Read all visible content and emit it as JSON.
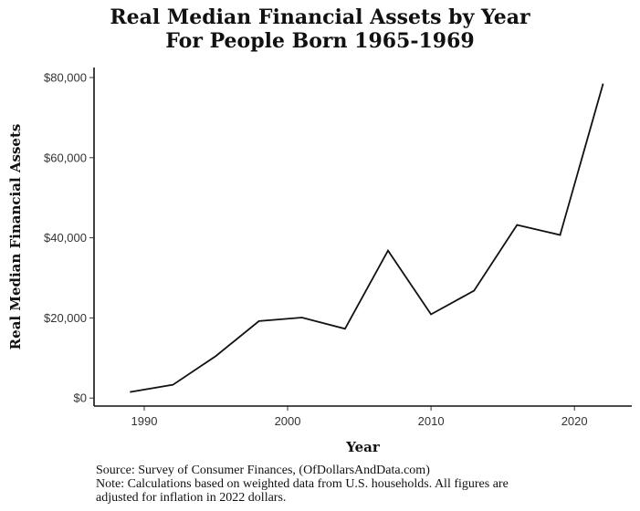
{
  "chart_data": {
    "type": "line",
    "title_line1": "Real Median Financial Assets by Year",
    "title_line2": "For People Born 1965-1969",
    "xlabel": "Year",
    "ylabel": "Real Median Financial Assets",
    "x": [
      1989,
      1992,
      1995,
      1998,
      2001,
      2004,
      2007,
      2010,
      2013,
      2016,
      2019,
      2022
    ],
    "series": [
      {
        "values": [
          1500,
          3300,
          10500,
          19200,
          20100,
          17300,
          36800,
          20900,
          26800,
          43200,
          40700,
          78500
        ]
      }
    ],
    "xlim": [
      1986.5,
      2024
    ],
    "ylim": [
      -2000,
      82500
    ],
    "x_ticks": [
      1990,
      2000,
      2010,
      2020
    ],
    "x_tick_labels": [
      "1990",
      "2000",
      "2010",
      "2020"
    ],
    "y_ticks": [
      0,
      20000,
      40000,
      60000,
      80000
    ],
    "y_tick_labels": [
      "$0",
      "$20,000",
      "$40,000",
      "$60,000",
      "$80,000"
    ],
    "grid": false,
    "line_color": "#111111"
  },
  "footer": {
    "source": "Source:  Survey of Consumer Finances, (OfDollarsAndData.com)",
    "note_line1": "Note: Calculations based on weighted data from U.S. households. All figures are",
    "note_line2": "adjusted for inflation in 2022 dollars."
  }
}
